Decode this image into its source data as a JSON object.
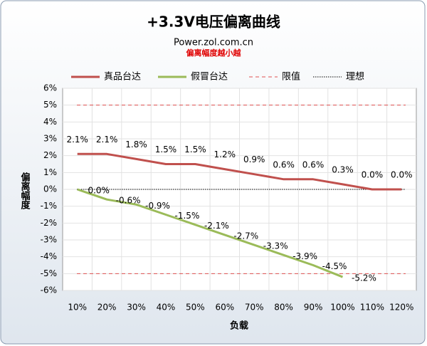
{
  "chart_data": {
    "type": "line",
    "title": "+3.3V电压偏离曲线",
    "subtitle": "Power.zol.com.cn",
    "note": "偏离幅度越小越",
    "xlabel": "负载",
    "ylabel": "偏离幅度",
    "categories": [
      "10%",
      "20%",
      "30%",
      "40%",
      "50%",
      "60%",
      "70%",
      "80%",
      "90%",
      "100%",
      "110%",
      "120%"
    ],
    "series": [
      {
        "name": "真品台达",
        "color": "#c0504d",
        "values": [
          2.1,
          2.1,
          1.8,
          1.5,
          1.5,
          1.2,
          0.9,
          0.6,
          0.6,
          0.3,
          0.0,
          0.0
        ],
        "value_labels": [
          "2.1%",
          "2.1%",
          "1.8%",
          "1.5%",
          "1.5%",
          "1.2%",
          "0.9%",
          "0.6%",
          "0.6%",
          "0.3%",
          "0.0%",
          "0.0%"
        ]
      },
      {
        "name": "假冒台达",
        "color": "#9bbb59",
        "values": [
          0.0,
          -0.6,
          -0.9,
          -1.5,
          -2.1,
          -2.7,
          -3.3,
          -3.9,
          -4.5,
          -5.2,
          null,
          null
        ],
        "value_labels": [
          "0.0%",
          "-0.6%",
          "-0.9%",
          "-1.5%",
          "-2.1%",
          "-2.7%",
          "-3.3%",
          "-3.9%",
          "-4.5%",
          "-5.2%",
          null,
          null
        ]
      }
    ],
    "reference_lines": [
      {
        "name": "限值",
        "color": "#e05050",
        "style": "dashed",
        "values": [
          5,
          -5
        ]
      },
      {
        "name": "理想",
        "color": "#000000",
        "style": "dotted",
        "values": [
          0
        ]
      }
    ],
    "ylim": [
      -6,
      6
    ],
    "yticks": [
      {
        "value": -6,
        "label": "-6%"
      },
      {
        "value": -5,
        "label": "-5%"
      },
      {
        "value": -4,
        "label": "-4%"
      },
      {
        "value": -3,
        "label": "-3%"
      },
      {
        "value": -2,
        "label": "-2%"
      },
      {
        "value": -1,
        "label": "-1%"
      },
      {
        "value": 0,
        "label": "0%"
      },
      {
        "value": 1,
        "label": "1%"
      },
      {
        "value": 2,
        "label": "2%"
      },
      {
        "value": 3,
        "label": "3%"
      },
      {
        "value": 4,
        "label": "4%"
      },
      {
        "value": 5,
        "label": "5%"
      },
      {
        "value": 6,
        "label": "6%"
      }
    ],
    "grid": true,
    "legend": "top"
  }
}
